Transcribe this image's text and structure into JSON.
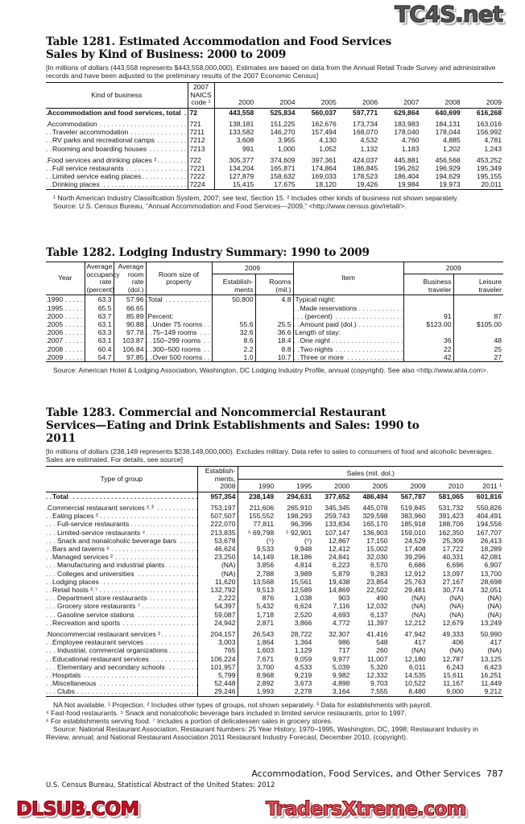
{
  "watermarks": {
    "top": "TC4S.net",
    "middle": "DLSUB.COM",
    "bottom": "TradersXtreme.com"
  },
  "t1281": {
    "title": "Table 1281. Estimated Accommodation and Food Services Sales by Kind of Business: 2000 to 2009",
    "note": "[In millions of dollars (443,558 represents $443,558,000,000). Estimates are based on data from the Annual Retail Trade Survey and administrative records and have been adjusted to the preliminary results of the 2007 Economic Census]",
    "headers": {
      "kind": "Kind of business",
      "code": "2007 NAICS code ¹",
      "years": [
        "2000",
        "2004",
        "2005",
        "2006",
        "2007",
        "2008",
        "2009"
      ]
    },
    "rows": [
      {
        "label": "Accommodation and food services, total",
        "code": "72",
        "values": [
          "443,558",
          "525,834",
          "560,037",
          "597,771",
          "629,864",
          "640,699",
          "616,268"
        ],
        "bold": true
      },
      {
        "label": "Accommodation",
        "code": "721",
        "values": [
          "138,181",
          "151,225",
          "162,676",
          "173,734",
          "183,983",
          "184,131",
          "163,016"
        ],
        "gap": true
      },
      {
        "label": "Traveler accommodation",
        "code": "7211",
        "values": [
          "133,582",
          "146,270",
          "157,494",
          "168,070",
          "178,040",
          "178,044",
          "156,992"
        ],
        "indent": 1
      },
      {
        "label": "RV parks and recreational camps",
        "code": "7212",
        "values": [
          "3,608",
          "3,955",
          "4,130",
          "4,532",
          "4,760",
          "4,885",
          "4,781"
        ],
        "indent": 1
      },
      {
        "label": "Rooming and boarding houses",
        "code": "7213",
        "values": [
          "991",
          "1,000",
          "1,052",
          "1,132",
          "1,183",
          "1,202",
          "1,243"
        ],
        "indent": 1
      },
      {
        "label": "Food services and drinking places ²",
        "code": "722",
        "values": [
          "305,377",
          "374,609",
          "397,361",
          "424,037",
          "445,881",
          "456,568",
          "453,252"
        ],
        "gap": true
      },
      {
        "label": "Full service restaurants",
        "code": "7221",
        "values": [
          "134,204",
          "165,871",
          "174,864",
          "186,845",
          "196,262",
          "196,929",
          "195,349"
        ],
        "indent": 1
      },
      {
        "label": "Limited service eating places",
        "code": "7222",
        "values": [
          "127,879",
          "158,632",
          "169,033",
          "178,523",
          "186,404",
          "194,629",
          "195,155"
        ],
        "indent": 1
      },
      {
        "label": "Drinking places",
        "code": "7224",
        "values": [
          "15,415",
          "17,675",
          "18,120",
          "19,426",
          "19,984",
          "19,973",
          "20,011"
        ],
        "indent": 1
      }
    ],
    "footnotes": [
      "¹ North American Industry Classification System, 2007; see text, Section 15. ² Includes other kinds of business not shown separately.",
      "Source: U.S. Census Bureau, “Annual Accommodation and Food Services—2009,” <http://www.census.gov/retail/>."
    ]
  },
  "t1282": {
    "title": "Table 1282. Lodging Industry Summary: 1990 to 2009",
    "headers": {
      "year": "Year",
      "occupancy": "Average occupancy rate (percent)",
      "rate": "Average room rate (dol.)",
      "roomsize": "Room size of property",
      "group2009a": "2009",
      "estab": "Establish- ments",
      "rooms": "Rooms (mil.)",
      "item": "Item",
      "group2009b": "2009",
      "business": "Business traveler",
      "leisure": "Leisure traveler"
    },
    "rows": [
      {
        "year": "1990",
        "occ": "63.3",
        "rate": "57.96",
        "size": "Total",
        "est": "50,800",
        "rooms": "4.8",
        "item": "Typical night:",
        "bus": "",
        "lei": ""
      },
      {
        "year": "1995",
        "occ": "65.5",
        "rate": "66.65",
        "size": "",
        "est": "",
        "rooms": "",
        "item": "Made reservations",
        "bus": "",
        "lei": ""
      },
      {
        "year": "2000",
        "occ": "63.7",
        "rate": "85.89",
        "size": "Percent:",
        "est": "",
        "rooms": "",
        "item": "(percent)",
        "bus": "91",
        "lei": "87"
      },
      {
        "year": "2005",
        "occ": "63.1",
        "rate": "90.88",
        "size": "Under 75 rooms",
        "est": "55.6",
        "rooms": "25.5",
        "item": "Amount paid (dol.)",
        "bus": "$123.00",
        "lei": "$105.00"
      },
      {
        "year": "2006",
        "occ": "63.3",
        "rate": "97.78",
        "size": "75–149 rooms",
        "est": "32.6",
        "rooms": "36.6",
        "item": "Length of stay:",
        "bus": "",
        "lei": ""
      },
      {
        "year": "2007",
        "occ": "63.1",
        "rate": "103.87",
        "size": "150–299 rooms",
        "est": "8.6",
        "rooms": "18.4",
        "item": "One night",
        "bus": "36",
        "lei": "48"
      },
      {
        "year": "2008",
        "occ": "60.4",
        "rate": "106.84",
        "size": "300–500 rooms",
        "est": "2.2",
        "rooms": "8.8",
        "item": "Two nights",
        "bus": "22",
        "lei": "25"
      },
      {
        "year": "2009",
        "occ": "54.7",
        "rate": "97.85",
        "size": "Over 500 rooms",
        "est": "1.0",
        "rooms": "10.7",
        "item": "Three or more",
        "bus": "42",
        "lei": "27"
      }
    ],
    "footnotes": [
      "Source: American Hotel & Lodging Association, Washington, DC Lodging Industry Profile, annual (copyright). See also <http://www.ahla.com>."
    ]
  },
  "t1283": {
    "title": "Table 1283. Commercial and Noncommercial Restaurant Services—Eating and Drink Establishments and Sales: 1990 to 2011",
    "note": "[In millions of dollars (238,149 represents $238,149,000,000). Excludes military. Data refer to sales to consumers of food and alcoholic beverages. Sales are estimated. For details, see source]",
    "headers": {
      "type": "Type of group",
      "estab": "Establish- ments, 2008",
      "sales": "Sales (mil. dol.)",
      "years": [
        "1990",
        "1995",
        "2000",
        "2005",
        "2009",
        "2010",
        "2011 ¹"
      ]
    },
    "rows": [
      {
        "label": "Total",
        "values": [
          "957,354",
          "238,149",
          "294,631",
          "377,652",
          "486,494",
          "567,787",
          "581,065",
          "601,816"
        ],
        "bold": true,
        "indent": 1
      },
      {
        "label": "Commercial restaurant services ²˒³",
        "values": [
          "753,197",
          "211,606",
          "265,910",
          "345,345",
          "445,078",
          "519,845",
          "531,732",
          "550,826"
        ],
        "gap": true
      },
      {
        "label": "Eating places ²",
        "values": [
          "507,507",
          "155,552",
          "198,293",
          "259,743",
          "329,598",
          "383,960",
          "391,423",
          "404,491"
        ],
        "indent": 1
      },
      {
        "label": "Full-service restaurants",
        "values": [
          "222,070",
          "77,811",
          "96,396",
          "133,834",
          "165,170",
          "185,918",
          "188,706",
          "194,556"
        ],
        "indent": 2
      },
      {
        "label": "Limited-service restaurants ⁴",
        "values": [
          "213,835",
          "⁵ 69,798",
          "⁵ 92,901",
          "107,147",
          "136,903",
          "159,010",
          "162,350",
          "167,707"
        ],
        "indent": 2
      },
      {
        "label": "Snack and nonalcoholic beverage bars",
        "values": [
          "53,678",
          "(⁵)",
          "(⁵)",
          "12,867",
          "17,150",
          "24,529",
          "25,309",
          "26,413"
        ],
        "indent": 2
      },
      {
        "label": "Bars and taverns ⁶",
        "values": [
          "46,624",
          "9,533",
          "9,948",
          "12,412",
          "15,002",
          "17,408",
          "17,722",
          "18,289"
        ],
        "indent": 1
      },
      {
        "label": "Managed services ²",
        "values": [
          "23,250",
          "14,149",
          "18,186",
          "24,841",
          "32,030",
          "39,296",
          "40,331",
          "42,081"
        ],
        "indent": 1
      },
      {
        "label": "Manufacturing and industrial plants",
        "values": [
          "(NA)",
          "3,856",
          "4,814",
          "6,223",
          "6,570",
          "6,686",
          "6,696",
          "6,907"
        ],
        "indent": 2
      },
      {
        "label": "Colleges and universities",
        "values": [
          "(NA)",
          "2,788",
          "3,989",
          "5,879",
          "9,283",
          "12,912",
          "13,097",
          "13,700"
        ],
        "indent": 2
      },
      {
        "label": "Lodging places",
        "values": [
          "11,620",
          "13,568",
          "15,561",
          "19,438",
          "23,854",
          "25,763",
          "27,167",
          "28,698"
        ],
        "indent": 1
      },
      {
        "label": "Retail hosts ²˒⁷",
        "values": [
          "132,792",
          "9,513",
          "12,589",
          "14,869",
          "22,502",
          "29,481",
          "30,774",
          "32,051"
        ],
        "indent": 1
      },
      {
        "label": "Department store restaurants",
        "values": [
          "2,222",
          "876",
          "1,038",
          "903",
          "490",
          "(NA)",
          "(NA)",
          "(NA)"
        ],
        "indent": 2
      },
      {
        "label": "Grocery store restaurants ⁷",
        "values": [
          "54,397",
          "5,432",
          "6,624",
          "7,116",
          "12,032",
          "(NA)",
          "(NA)",
          "(NA)"
        ],
        "indent": 2
      },
      {
        "label": "Gasoline service stations",
        "values": [
          "59,087",
          "1,718",
          "2,520",
          "4,693",
          "6,137",
          "(NA)",
          "(NA)",
          "(NA)"
        ],
        "indent": 2
      },
      {
        "label": "Recreation and sports",
        "values": [
          "24,942",
          "2,871",
          "3,866",
          "4,772",
          "11,397",
          "12,212",
          "12,679",
          "13,249"
        ],
        "indent": 1
      },
      {
        "label": "Noncommercial restaurant services ²",
        "values": [
          "204,157",
          "26,543",
          "28,722",
          "32,307",
          "41,416",
          "47,942",
          "49,333",
          "50,990"
        ],
        "gap": true
      },
      {
        "label": "Employee restaurant services",
        "values": [
          "3,003",
          "1,864",
          "1,364",
          "986",
          "548",
          "417",
          "406",
          "417"
        ],
        "indent": 1
      },
      {
        "label": "Industrial, commercial organizations",
        "values": [
          "765",
          "1,603",
          "1,129",
          "717",
          "260",
          "(NA)",
          "(NA)",
          "(NA)"
        ],
        "indent": 2
      },
      {
        "label": "Educational restaurant services",
        "values": [
          "106,224",
          "7,671",
          "9,059",
          "9,977",
          "11,007",
          "12,180",
          "12,787",
          "13,125"
        ],
        "indent": 1
      },
      {
        "label": "Elementary and secondary schools",
        "values": [
          "101,957",
          "3,700",
          "4,533",
          "5,039",
          "5,320",
          "6,011",
          "6,243",
          "6,423"
        ],
        "indent": 2
      },
      {
        "label": "Hospitals",
        "values": [
          "5,799",
          "8,968",
          "9,219",
          "9,982",
          "12,332",
          "14,535",
          "15,611",
          "16,251"
        ],
        "indent": 1
      },
      {
        "label": "Miscellaneous",
        "values": [
          "52,448",
          "2,892",
          "3,673",
          "4,898",
          "9,703",
          "10,522",
          "11,167",
          "11,449"
        ],
        "indent": 1
      },
      {
        "label": "Clubs",
        "values": [
          "29,246",
          "1,993",
          "2,278",
          "3,164",
          "7,555",
          "8,480",
          "9,000",
          "9,212"
        ],
        "indent": 2
      }
    ],
    "footnotes": [
      "NA Not available. ¹ Projection. ² Includes other types of groups, not shown separately. ³ Data for establishments with payroll.",
      "⁴ Fast-food restaurants. ⁵ Snack and nonalcoholic beverage bars included in limited service restaurants, prior to 1997.",
      "⁶ For establishments serving food. ⁷ Includes a portion of delicatessen sales in grocery stores.",
      "Source: National Restaurant Association, Restaurant Numbers: 25 Year History, 1970–1995, Washington, DC, 1998; Restaurant Industry in Review, annual; and National Restaurant Association 2011 Restaurant Industry Forecast, December 2010, (copyright)."
    ]
  },
  "footer": {
    "section": "Accommodation, Food Services, and Other Services",
    "page": "787",
    "source": "U.S. Census Bureau, Statistical Abstract of the United States: 2012"
  }
}
